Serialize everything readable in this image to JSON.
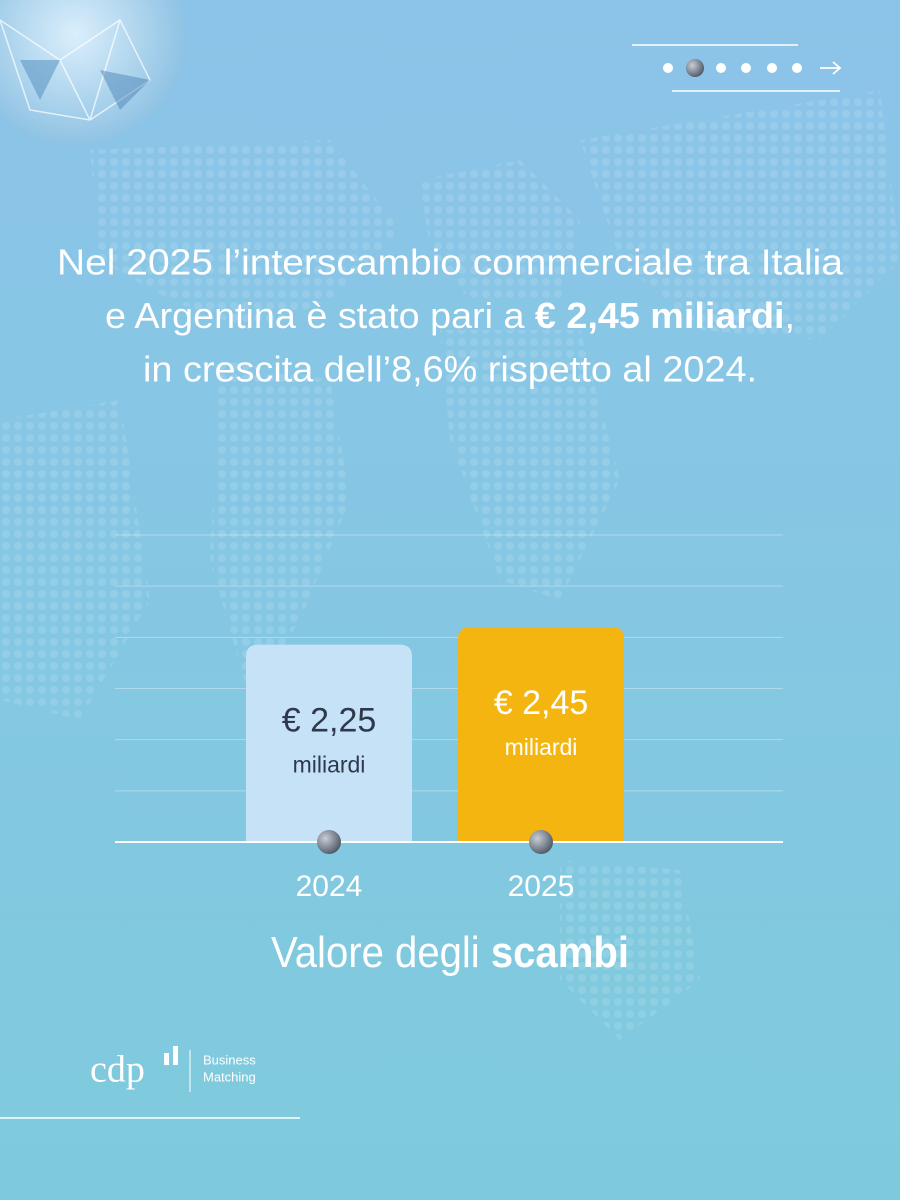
{
  "chart_data": {
    "type": "bar",
    "headline": [
      "Nel 2025 l’interscambio commerciale tra Italia",
      "e Argentina è stato pari a ",
      "€ 2,45 miliardi",
      ",",
      "in crescita dell’8,6% rispetto al 2024."
    ],
    "title": [
      "Valore degli ",
      "scambi"
    ],
    "categories": [
      "2024",
      "2025"
    ],
    "values": [
      2.25,
      2.45
    ],
    "value_labels": [
      "€ 2,25",
      "€ 2,45"
    ],
    "value_unit": "miliardi",
    "colors": [
      "#c6e2f7",
      "#f5b510"
    ],
    "ylim": [
      0,
      3.5
    ]
  },
  "footer": {
    "logo": "cdp",
    "tagline": [
      "Business",
      "Matching"
    ]
  }
}
